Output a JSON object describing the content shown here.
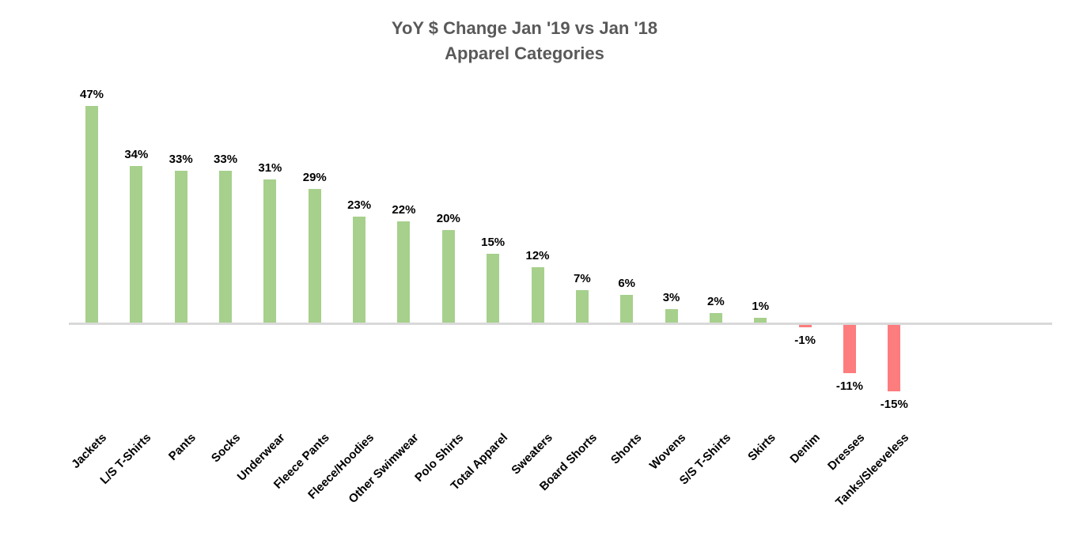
{
  "page": {
    "background": "#ffffff"
  },
  "title": {
    "line1": "YoY $ Change Jan '19 vs Jan '18",
    "line2": "Apparel Categories"
  },
  "chart_data": {
    "type": "bar",
    "title": "YoY $ Change Jan '19 vs Jan '18",
    "subtitle": "Apparel Categories",
    "categories": [
      "Jackets",
      "L/S T-Shirts",
      "Pants",
      "Socks",
      "Underwear",
      "Fleece Pants",
      "Fleece/Hoodies",
      "Other Swimwear",
      "Polo Shirts",
      "Total Apparel",
      "Sweaters",
      "Board Shorts",
      "Shorts",
      "Wovens",
      "S/S T-Shirts",
      "Skirts",
      "Denim",
      "Dresses",
      "Tanks/Sleeveless"
    ],
    "values": [
      47,
      34,
      33,
      33,
      31,
      29,
      23,
      22,
      20,
      15,
      12,
      7,
      6,
      3,
      2,
      1,
      -1,
      -11,
      -15
    ],
    "value_labels": [
      "47%",
      "34%",
      "33%",
      "33%",
      "31%",
      "29%",
      "23%",
      "22%",
      "20%",
      "15%",
      "12%",
      "7%",
      "6%",
      "3%",
      "2%",
      "1%",
      "-1%",
      "-11%",
      "-15%"
    ],
    "xlabel": "",
    "ylabel": "",
    "ylim": [
      -20,
      50
    ],
    "grid": false,
    "legend": "none",
    "category_label_rotation_deg": -45,
    "colors": {
      "positive_bar": "#a6d08c",
      "negative_bar": "#fd7c7e",
      "axis_line": "#d9d9d9",
      "title_text": "#595959",
      "data_label_text": "#000000",
      "category_label_text": "#000000"
    }
  }
}
